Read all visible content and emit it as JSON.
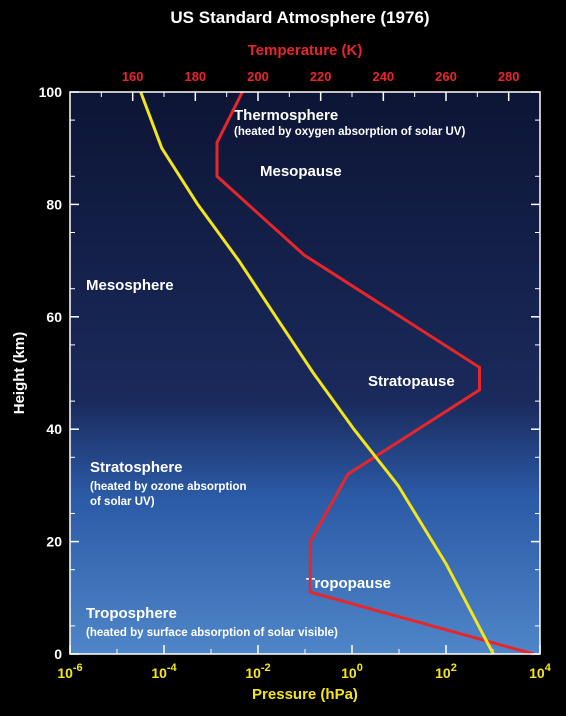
{
  "colors": {
    "background": "#000000",
    "plot_top": "#0d1535",
    "plot_bottom": "#4f86c8",
    "temperature": "#e8262a",
    "pressure": "#f3e51c",
    "text": "#ffffff"
  },
  "chart_data": {
    "type": "line",
    "title": "US Standard Atmosphere (1976)",
    "ylabel": "Height (km)",
    "ylim": [
      0,
      100
    ],
    "y_ticks": [
      "0",
      "20",
      "40",
      "60",
      "80",
      "100"
    ],
    "top_axis": {
      "label": "Temperature (K)",
      "range": [
        140,
        290
      ],
      "ticks": [
        "160",
        "180",
        "200",
        "220",
        "240",
        "260",
        "280"
      ]
    },
    "bottom_axis": {
      "label": "Pressure (hPa)",
      "scale": "log",
      "range": [
        1e-06,
        10000.0
      ],
      "ticks": [
        {
          "base": "10",
          "exp": "-6"
        },
        {
          "base": "10",
          "exp": "-4"
        },
        {
          "base": "10",
          "exp": "-2"
        },
        {
          "base": "10",
          "exp": "0"
        },
        {
          "base": "10",
          "exp": "2"
        },
        {
          "base": "10",
          "exp": "4"
        }
      ]
    },
    "series": [
      {
        "key": "temperature",
        "axis": "top",
        "points": [
          [
            288,
            0
          ],
          [
            216.7,
            11
          ],
          [
            216.7,
            20
          ],
          [
            228.7,
            32
          ],
          [
            270.7,
            47
          ],
          [
            270.7,
            51
          ],
          [
            214.7,
            71
          ],
          [
            186.9,
            85
          ],
          [
            186.9,
            91
          ],
          [
            195,
            100
          ]
        ]
      },
      {
        "key": "pressure",
        "axis": "bottom",
        "points": [
          [
            1013,
            0
          ],
          [
            101,
            16
          ],
          [
            9.5,
            30
          ],
          [
            1.1,
            40
          ],
          [
            0.15,
            50
          ],
          [
            0.024,
            60
          ],
          [
            0.0039,
            70
          ],
          [
            0.00052,
            80
          ],
          [
            9e-05,
            90
          ],
          [
            3.2e-05,
            100
          ]
        ]
      }
    ],
    "annotations": [
      {
        "key": "thermosphere",
        "lines": [
          "Thermosphere"
        ],
        "size": "large"
      },
      {
        "key": "thermosphere_note",
        "lines": [
          "(heated by oxygen absorption of solar UV)"
        ],
        "size": "small"
      },
      {
        "key": "mesopause",
        "lines": [
          "Mesopause"
        ],
        "size": "large"
      },
      {
        "key": "mesosphere",
        "lines": [
          "Mesosphere"
        ],
        "size": "large"
      },
      {
        "key": "stratopause",
        "lines": [
          "Stratopause"
        ],
        "size": "large"
      },
      {
        "key": "stratosphere",
        "lines": [
          "Stratosphere"
        ],
        "size": "large"
      },
      {
        "key": "stratosphere_note",
        "lines": [
          "(heated by ozone absorption",
          "of solar UV)"
        ],
        "size": "small"
      },
      {
        "key": "tropopause",
        "lines": [
          "Tropopause"
        ],
        "size": "large"
      },
      {
        "key": "troposphere",
        "lines": [
          "Troposphere"
        ],
        "size": "large"
      },
      {
        "key": "troposphere_note",
        "lines": [
          "(heated by surface absorption of solar visible)"
        ],
        "size": "small"
      }
    ]
  }
}
